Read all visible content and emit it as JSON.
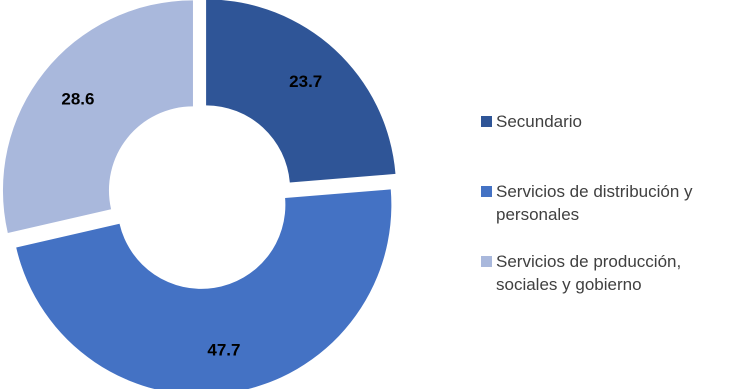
{
  "chart_data": {
    "type": "pie",
    "donut": true,
    "exploded": true,
    "legend_position": "right",
    "categories": [
      "Secundario",
      "Servicios de distribución y personales",
      "Servicios de producción, sociales y gobierno"
    ],
    "values": [
      23.7,
      47.7,
      28.6
    ],
    "data_labels": [
      "23.7",
      "47.7",
      "28.6"
    ],
    "colors": [
      "#2f5597",
      "#4472c4",
      "#a9b8dc"
    ]
  }
}
